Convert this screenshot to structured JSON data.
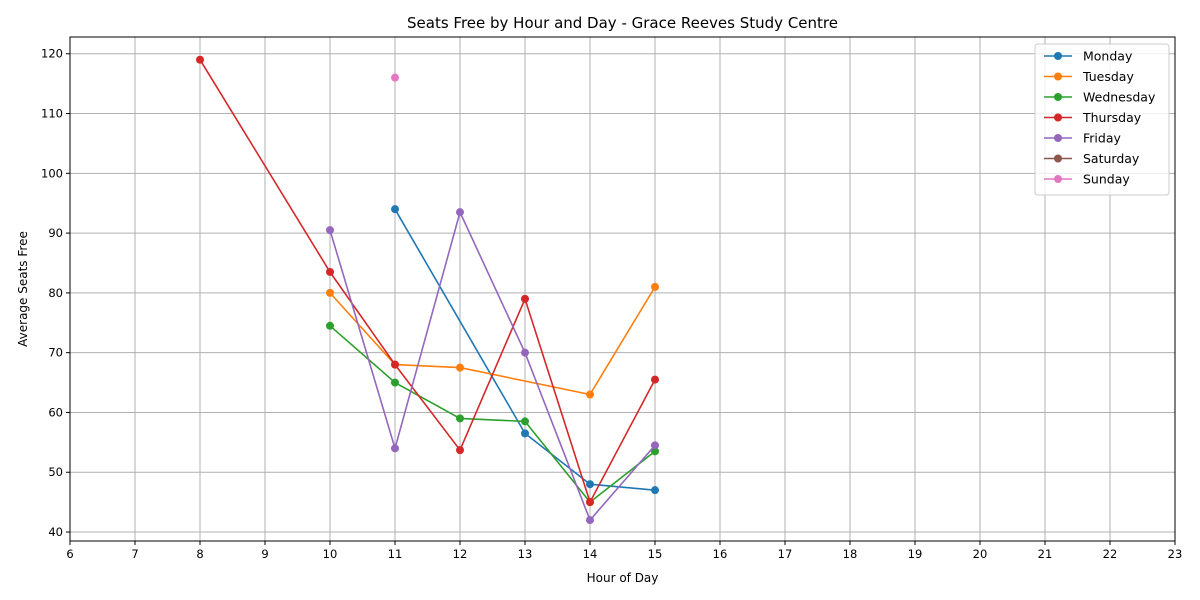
{
  "chart_data": {
    "type": "line",
    "title": "Seats Free by Hour and Day - Grace Reeves Study Centre",
    "xlabel": "Hour of Day",
    "ylabel": "Average Seats Free",
    "xlim": [
      6,
      23
    ],
    "ylim": [
      38.5,
      122.8
    ],
    "xticks": [
      6,
      7,
      8,
      9,
      10,
      11,
      12,
      13,
      14,
      15,
      16,
      17,
      18,
      19,
      20,
      21,
      22,
      23
    ],
    "yticks": [
      40,
      50,
      60,
      70,
      80,
      90,
      100,
      110,
      120
    ],
    "grid": true,
    "legend_position": "top-right",
    "series": [
      {
        "name": "Monday",
        "color": "#1f77b4",
        "points": [
          [
            11,
            94.0
          ],
          [
            13,
            56.5
          ],
          [
            14,
            48.0
          ],
          [
            15,
            47.0
          ]
        ]
      },
      {
        "name": "Tuesday",
        "color": "#ff7f0e",
        "points": [
          [
            10,
            80.0
          ],
          [
            11,
            68.0
          ],
          [
            12,
            67.5
          ],
          [
            14,
            63.0
          ],
          [
            15,
            81.0
          ]
        ]
      },
      {
        "name": "Wednesday",
        "color": "#2ca02c",
        "points": [
          [
            10,
            74.5
          ],
          [
            11,
            65.0
          ],
          [
            12,
            59.0
          ],
          [
            13,
            58.5
          ],
          [
            14,
            45.0
          ],
          [
            15,
            53.5
          ]
        ]
      },
      {
        "name": "Thursday",
        "color": "#d62728",
        "points": [
          [
            8,
            119.0
          ],
          [
            10,
            83.5
          ],
          [
            11,
            68.0
          ],
          [
            12,
            53.7
          ],
          [
            13,
            79.0
          ],
          [
            14,
            45.0
          ],
          [
            15,
            65.5
          ]
        ]
      },
      {
        "name": "Friday",
        "color": "#9467bd",
        "points": [
          [
            10,
            90.5
          ],
          [
            11,
            54.0
          ],
          [
            12,
            93.5
          ],
          [
            13,
            70.0
          ],
          [
            14,
            42.0
          ],
          [
            15,
            54.5
          ]
        ]
      },
      {
        "name": "Saturday",
        "color": "#8c564b",
        "points": []
      },
      {
        "name": "Sunday",
        "color": "#e377c2",
        "points": [
          [
            11,
            116.0
          ]
        ]
      }
    ]
  }
}
